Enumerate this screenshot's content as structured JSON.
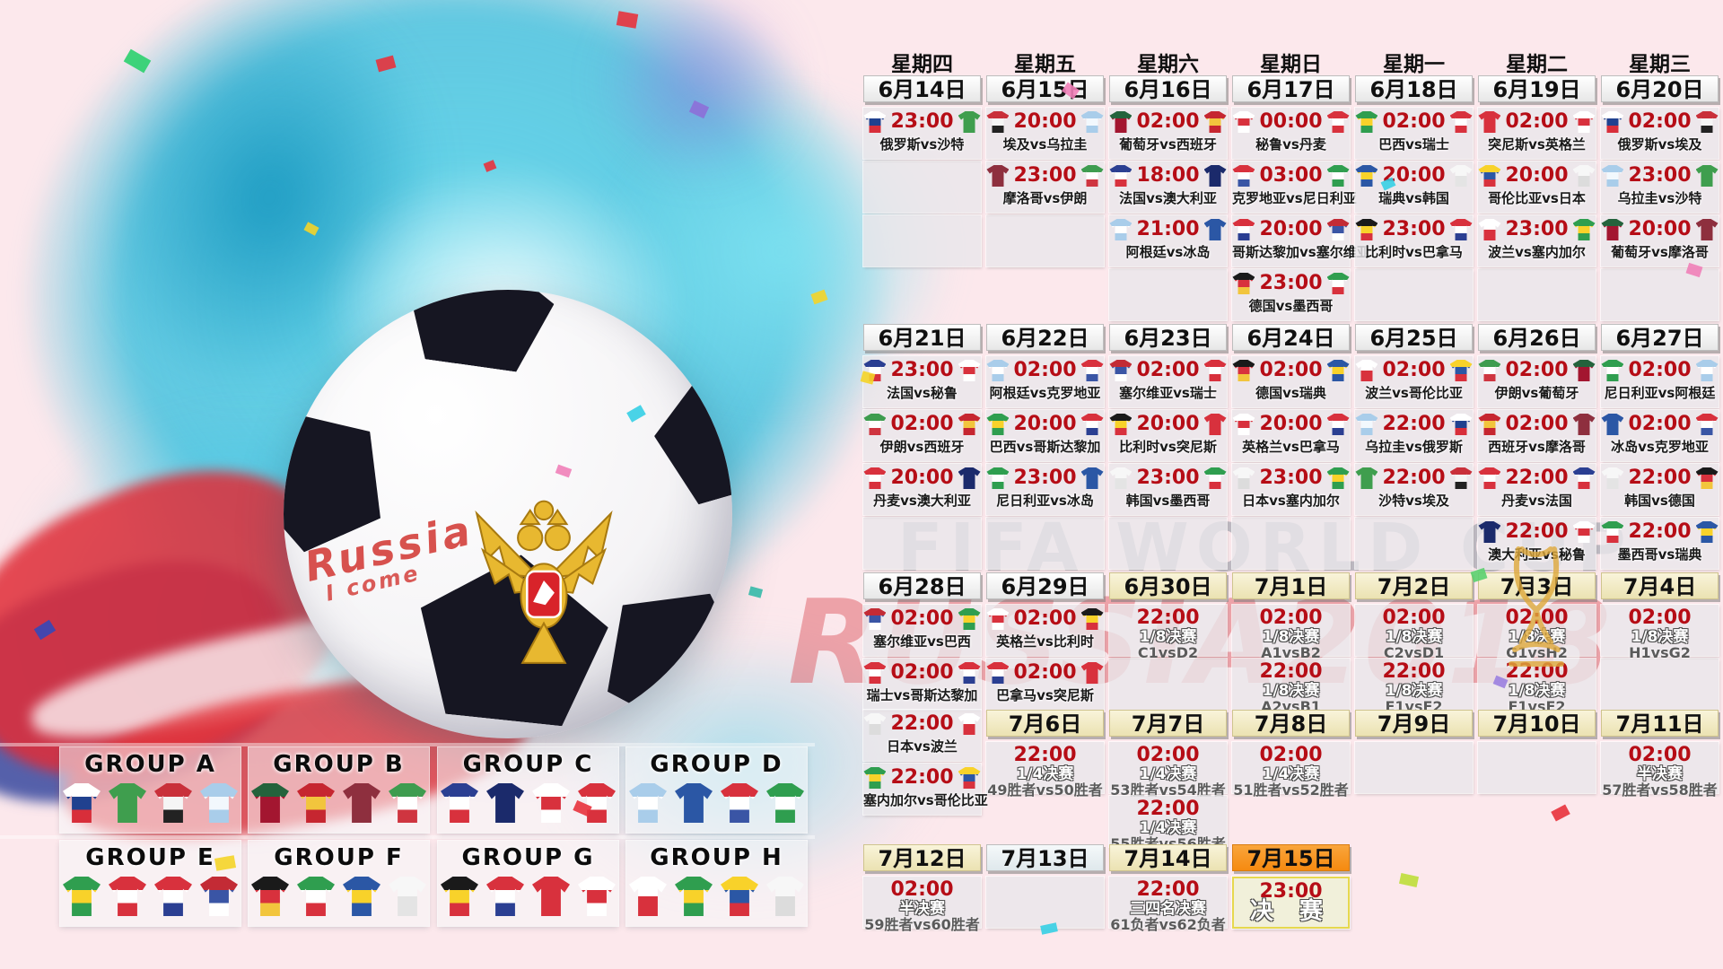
{
  "watermark": {
    "line1": "FIFA WORLD CUP",
    "line2": "RUSSIA2018"
  },
  "ball": {
    "script1": "Russia",
    "script2": "I come",
    "emblem": "russia-coat-of-arms"
  },
  "colors": {
    "time_red": "#b60d16",
    "date_plain": "#ffffff",
    "date_beige": "#f5efcf",
    "date_orange": "#f6921e",
    "final_border": "#e6d84e",
    "watermark_red": "#d63a44",
    "splash_teal": "#3cc0de"
  },
  "teams": {
    "俄罗斯": [
      "#ffffff",
      "#20418f",
      "#d82e3a"
    ],
    "沙特": [
      "#3f9e4e"
    ],
    "埃及": [
      "#c9303a",
      "#f5f5f5",
      "#222222"
    ],
    "乌拉圭": [
      "#a9cdea",
      "#f2f8fd",
      "#a9cdea"
    ],
    "葡萄牙": [
      "#24633c",
      "#a31630",
      "#a31630"
    ],
    "西班牙": [
      "#c62630",
      "#f2c53d",
      "#c62630"
    ],
    "摩洛哥": [
      "#8e2f3e"
    ],
    "伊朗": [
      "#3e9c4f",
      "#ffffff",
      "#cf3540"
    ],
    "法国": [
      "#2b3f92",
      "#ffffff",
      "#d8313d"
    ],
    "澳大利亚": [
      "#1b2a6b"
    ],
    "秘鲁": [
      "#ffffff",
      "#d8313d",
      "#ffffff"
    ],
    "丹麦": [
      "#d8313d",
      "#ffffff",
      "#d8313d"
    ],
    "克罗地亚": [
      "#d8313d",
      "#ffffff",
      "#3a55a5"
    ],
    "尼日利亚": [
      "#2f9e4f",
      "#ffffff",
      "#2f9e4f"
    ],
    "哥斯达黎加": [
      "#d8313d",
      "#ffffff",
      "#2b3f92"
    ],
    "塞尔维亚": [
      "#c32b35",
      "#3a55a5",
      "#ffffff"
    ],
    "德国": [
      "#1a1a1a",
      "#d8313d",
      "#f2c53d"
    ],
    "墨西哥": [
      "#2f9e4f",
      "#ffffff",
      "#d8313d"
    ],
    "巴西": [
      "#2f9e4f",
      "#f8d22a",
      "#2f9e4f"
    ],
    "瑞士": [
      "#d8313d",
      "#ffffff",
      "#d8313d"
    ],
    "瑞典": [
      "#2b57a5",
      "#f8d22a",
      "#2b57a5"
    ],
    "韩国": [
      "#f7f7f7",
      "#e4e4e4"
    ],
    "比利时": [
      "#1a1a1a",
      "#f8d22a",
      "#d8313d"
    ],
    "巴拿马": [
      "#d8313d",
      "#ffffff",
      "#2b3f92"
    ],
    "突尼斯": [
      "#d8313d"
    ],
    "英格兰": [
      "#ffffff",
      "#d8313d",
      "#ffffff"
    ],
    "波兰": [
      "#ffffff",
      "#d8313d"
    ],
    "塞内加尔": [
      "#2f9e4f",
      "#f8d22a",
      "#2f9e4f"
    ],
    "哥伦比亚": [
      "#f8d22a",
      "#2b57a5",
      "#d8313d"
    ],
    "日本": [
      "#f7f7f7",
      "#dcdcdc"
    ],
    "冰岛": [
      "#2b57a5"
    ],
    "阿根廷": [
      "#a9cdea",
      "#ffffff",
      "#a9cdea"
    ]
  },
  "schedule": {
    "weekdays": [
      "星期四",
      "星期五",
      "星期六",
      "星期日",
      "星期一",
      "星期二",
      "星期三"
    ],
    "weeks": [
      {
        "dates": [
          {
            "col": 0,
            "label": "6月14日",
            "variant": "plain"
          },
          {
            "col": 1,
            "label": "6月15日",
            "variant": "plain"
          },
          {
            "col": 2,
            "label": "6月16日",
            "variant": "plain"
          },
          {
            "col": 3,
            "label": "6月17日",
            "variant": "plain"
          },
          {
            "col": 4,
            "label": "6月18日",
            "variant": "plain"
          },
          {
            "col": 5,
            "label": "6月19日",
            "variant": "plain"
          },
          {
            "col": 6,
            "label": "6月20日",
            "variant": "plain"
          }
        ],
        "matches": [
          {
            "col": 0,
            "row": 0,
            "time": "23:00",
            "home": "俄罗斯",
            "away": "沙特",
            "label": "俄罗斯vs沙特"
          },
          {
            "col": 1,
            "row": 0,
            "time": "20:00",
            "home": "埃及",
            "away": "乌拉圭",
            "label": "埃及vs乌拉圭"
          },
          {
            "col": 1,
            "row": 1,
            "time": "23:00",
            "home": "摩洛哥",
            "away": "伊朗",
            "label": "摩洛哥vs伊朗"
          },
          {
            "col": 2,
            "row": 0,
            "time": "02:00",
            "home": "葡萄牙",
            "away": "西班牙",
            "label": "葡萄牙vs西班牙"
          },
          {
            "col": 2,
            "row": 1,
            "time": "18:00",
            "home": "法国",
            "away": "澳大利亚",
            "label": "法国vs澳大利亚"
          },
          {
            "col": 2,
            "row": 2,
            "time": "21:00",
            "home": "阿根廷",
            "away": "冰岛",
            "label": "阿根廷vs冰岛"
          },
          {
            "col": 3,
            "row": 0,
            "time": "00:00",
            "home": "秘鲁",
            "away": "丹麦",
            "label": "秘鲁vs丹麦"
          },
          {
            "col": 3,
            "row": 1,
            "time": "03:00",
            "home": "克罗地亚",
            "away": "尼日利亚",
            "label": "克罗地亚vs尼日利亚"
          },
          {
            "col": 3,
            "row": 2,
            "time": "20:00",
            "home": "哥斯达黎加",
            "away": "塞尔维亚",
            "label": "哥斯达黎加vs塞尔维亚"
          },
          {
            "col": 3,
            "row": 3,
            "time": "23:00",
            "home": "德国",
            "away": "墨西哥",
            "label": "德国vs墨西哥"
          },
          {
            "col": 4,
            "row": 0,
            "time": "02:00",
            "home": "巴西",
            "away": "瑞士",
            "label": "巴西vs瑞士"
          },
          {
            "col": 4,
            "row": 1,
            "time": "20:00",
            "home": "瑞典",
            "away": "韩国",
            "label": "瑞典vs韩国"
          },
          {
            "col": 4,
            "row": 2,
            "time": "23:00",
            "home": "比利时",
            "away": "巴拿马",
            "label": "比利时vs巴拿马"
          },
          {
            "col": 5,
            "row": 0,
            "time": "02:00",
            "home": "突尼斯",
            "away": "英格兰",
            "label": "突尼斯vs英格兰"
          },
          {
            "col": 5,
            "row": 1,
            "time": "20:00",
            "home": "哥伦比亚",
            "away": "日本",
            "label": "哥伦比亚vs日本"
          },
          {
            "col": 5,
            "row": 2,
            "time": "23:00",
            "home": "波兰",
            "away": "塞内加尔",
            "label": "波兰vs塞内加尔"
          },
          {
            "col": 6,
            "row": 0,
            "time": "02:00",
            "home": "俄罗斯",
            "away": "埃及",
            "label": "俄罗斯vs埃及"
          },
          {
            "col": 6,
            "row": 1,
            "time": "23:00",
            "home": "乌拉圭",
            "away": "沙特",
            "label": "乌拉圭vs沙特"
          },
          {
            "col": 6,
            "row": 2,
            "time": "20:00",
            "home": "葡萄牙",
            "away": "摩洛哥",
            "label": "葡萄牙vs摩洛哥"
          }
        ],
        "empty": [
          [
            0,
            1
          ],
          [
            0,
            2
          ],
          [
            1,
            2
          ],
          [
            2,
            3
          ],
          [
            4,
            3
          ],
          [
            5,
            3
          ],
          [
            6,
            3
          ]
        ]
      },
      {
        "dates": [
          {
            "col": 0,
            "label": "6月21日",
            "variant": "plain"
          },
          {
            "col": 1,
            "label": "6月22日",
            "variant": "plain"
          },
          {
            "col": 2,
            "label": "6月23日",
            "variant": "plain"
          },
          {
            "col": 3,
            "label": "6月24日",
            "variant": "plain"
          },
          {
            "col": 4,
            "label": "6月25日",
            "variant": "plain"
          },
          {
            "col": 5,
            "label": "6月26日",
            "variant": "plain"
          },
          {
            "col": 6,
            "label": "6月27日",
            "variant": "plain"
          }
        ],
        "matches": [
          {
            "col": 0,
            "row": 0,
            "time": "23:00",
            "home": "法国",
            "away": "秘鲁",
            "label": "法国vs秘鲁"
          },
          {
            "col": 0,
            "row": 1,
            "time": "02:00",
            "home": "伊朗",
            "away": "西班牙",
            "label": "伊朗vs西班牙"
          },
          {
            "col": 0,
            "row": 2,
            "time": "20:00",
            "home": "丹麦",
            "away": "澳大利亚",
            "label": "丹麦vs澳大利亚"
          },
          {
            "col": 1,
            "row": 0,
            "time": "02:00",
            "home": "阿根廷",
            "away": "克罗地亚",
            "label": "阿根廷vs克罗地亚"
          },
          {
            "col": 1,
            "row": 1,
            "time": "20:00",
            "home": "巴西",
            "away": "哥斯达黎加",
            "label": "巴西vs哥斯达黎加"
          },
          {
            "col": 1,
            "row": 2,
            "time": "23:00",
            "home": "尼日利亚",
            "away": "冰岛",
            "label": "尼日利亚vs冰岛"
          },
          {
            "col": 2,
            "row": 0,
            "time": "02:00",
            "home": "塞尔维亚",
            "away": "瑞士",
            "label": "塞尔维亚vs瑞士"
          },
          {
            "col": 2,
            "row": 1,
            "time": "20:00",
            "home": "比利时",
            "away": "突尼斯",
            "label": "比利时vs突尼斯"
          },
          {
            "col": 2,
            "row": 2,
            "time": "23:00",
            "home": "韩国",
            "away": "墨西哥",
            "label": "韩国vs墨西哥"
          },
          {
            "col": 3,
            "row": 0,
            "time": "02:00",
            "home": "德国",
            "away": "瑞典",
            "label": "德国vs瑞典"
          },
          {
            "col": 3,
            "row": 1,
            "time": "20:00",
            "home": "英格兰",
            "away": "巴拿马",
            "label": "英格兰vs巴拿马"
          },
          {
            "col": 3,
            "row": 2,
            "time": "23:00",
            "home": "日本",
            "away": "塞内加尔",
            "label": "日本vs塞内加尔"
          },
          {
            "col": 4,
            "row": 0,
            "time": "02:00",
            "home": "波兰",
            "away": "哥伦比亚",
            "label": "波兰vs哥伦比亚"
          },
          {
            "col": 4,
            "row": 1,
            "time": "22:00",
            "home": "乌拉圭",
            "away": "俄罗斯",
            "label": "乌拉圭vs俄罗斯"
          },
          {
            "col": 4,
            "row": 2,
            "time": "22:00",
            "home": "沙特",
            "away": "埃及",
            "label": "沙特vs埃及"
          },
          {
            "col": 5,
            "row": 0,
            "time": "02:00",
            "home": "伊朗",
            "away": "葡萄牙",
            "label": "伊朗vs葡萄牙"
          },
          {
            "col": 5,
            "row": 1,
            "time": "02:00",
            "home": "西班牙",
            "away": "摩洛哥",
            "label": "西班牙vs摩洛哥"
          },
          {
            "col": 5,
            "row": 2,
            "time": "22:00",
            "home": "丹麦",
            "away": "法国",
            "label": "丹麦vs法国"
          },
          {
            "col": 5,
            "row": 3,
            "time": "22:00",
            "home": "澳大利亚",
            "away": "秘鲁",
            "label": "澳大利亚vs秘鲁"
          },
          {
            "col": 6,
            "row": 0,
            "time": "02:00",
            "home": "尼日利亚",
            "away": "阿根廷",
            "label": "尼日利亚vs阿根廷"
          },
          {
            "col": 6,
            "row": 1,
            "time": "02:00",
            "home": "冰岛",
            "away": "克罗地亚",
            "label": "冰岛vs克罗地亚"
          },
          {
            "col": 6,
            "row": 2,
            "time": "22:00",
            "home": "韩国",
            "away": "德国",
            "label": "韩国vs德国"
          },
          {
            "col": 6,
            "row": 3,
            "time": "22:00",
            "home": "墨西哥",
            "away": "瑞典",
            "label": "墨西哥vs瑞典"
          }
        ],
        "empty": [
          [
            0,
            3
          ],
          [
            1,
            3
          ],
          [
            2,
            3
          ],
          [
            3,
            3
          ],
          [
            4,
            3
          ]
        ]
      },
      {
        "dates": [
          {
            "col": 0,
            "label": "6月28日",
            "variant": "plain"
          },
          {
            "col": 1,
            "label": "6月29日",
            "variant": "plain"
          },
          {
            "col": 2,
            "label": "6月30日",
            "variant": "beige"
          },
          {
            "col": 3,
            "label": "7月1日",
            "variant": "beige"
          },
          {
            "col": 4,
            "label": "7月2日",
            "variant": "beige"
          },
          {
            "col": 5,
            "label": "7月3日",
            "variant": "beige"
          },
          {
            "col": 6,
            "label": "7月4日",
            "variant": "beige"
          }
        ],
        "matches": [
          {
            "col": 0,
            "row": 0,
            "time": "02:00",
            "home": "塞尔维亚",
            "away": "巴西",
            "label": "塞尔维亚vs巴西"
          },
          {
            "col": 0,
            "row": 1,
            "time": "02:00",
            "home": "瑞士",
            "away": "哥斯达黎加",
            "label": "瑞士vs哥斯达黎加"
          },
          {
            "col": 0,
            "row": 2,
            "time": "22:00",
            "home": "日本",
            "away": "波兰",
            "label": "日本vs波兰"
          },
          {
            "col": 0,
            "row": 3,
            "time": "22:00",
            "home": "塞内加尔",
            "away": "哥伦比亚",
            "label": "塞内加尔vs哥伦比亚"
          },
          {
            "col": 1,
            "row": 0,
            "time": "02:00",
            "home": "英格兰",
            "away": "比利时",
            "label": "英格兰vs比利时"
          },
          {
            "col": 1,
            "row": 1,
            "time": "02:00",
            "home": "巴拿马",
            "away": "突尼斯",
            "label": "巴拿马vs突尼斯"
          },
          {
            "col": 2,
            "row": 0,
            "time": "22:00",
            "stage": "1/8决赛",
            "pair": "C1vsD2"
          },
          {
            "col": 3,
            "row": 0,
            "time": "02:00",
            "stage": "1/8决赛",
            "pair": "A1vsB2"
          },
          {
            "col": 3,
            "row": 1,
            "time": "22:00",
            "stage": "1/8决赛",
            "pair": "A2vsB1"
          },
          {
            "col": 4,
            "row": 0,
            "time": "02:00",
            "stage": "1/8决赛",
            "pair": "C2vsD1"
          },
          {
            "col": 4,
            "row": 1,
            "time": "22:00",
            "stage": "1/8决赛",
            "pair": "E1vsF2"
          },
          {
            "col": 5,
            "row": 0,
            "time": "02:00",
            "stage": "1/8决赛",
            "pair": "G1vsH2"
          },
          {
            "col": 5,
            "row": 1,
            "time": "22:00",
            "stage": "1/8决赛",
            "pair": "F1vsE2"
          },
          {
            "col": 6,
            "row": 0,
            "time": "02:00",
            "stage": "1/8决赛",
            "pair": "H1vsG2"
          }
        ],
        "empty": [
          [
            2,
            1
          ],
          [
            6,
            1
          ]
        ]
      },
      {
        "dates": [
          {
            "col": 1,
            "label": "7月6日",
            "variant": "beige"
          },
          {
            "col": 2,
            "label": "7月7日",
            "variant": "beige"
          },
          {
            "col": 3,
            "label": "7月8日",
            "variant": "beige"
          },
          {
            "col": 4,
            "label": "7月9日",
            "variant": "beige"
          },
          {
            "col": 5,
            "label": "7月10日",
            "variant": "beige"
          },
          {
            "col": 6,
            "label": "7月11日",
            "variant": "beige"
          }
        ],
        "matches": [
          {
            "col": 1,
            "row": 0,
            "time": "22:00",
            "stage": "1/4决赛",
            "pair": "49胜者vs50胜者"
          },
          {
            "col": 2,
            "row": 0,
            "time": "02:00",
            "stage": "1/4决赛",
            "pair": "53胜者vs54胜者"
          },
          {
            "col": 2,
            "row": 1,
            "time": "22:00",
            "stage": "1/4决赛",
            "pair": "55胜者vs56胜者"
          },
          {
            "col": 3,
            "row": 0,
            "time": "02:00",
            "stage": "1/4决赛",
            "pair": "51胜者vs52胜者"
          },
          {
            "col": 6,
            "row": 0,
            "time": "02:00",
            "stage": "半决赛",
            "pair": "57胜者vs58胜者"
          }
        ],
        "empty": [
          [
            4,
            0
          ],
          [
            5,
            0
          ]
        ]
      },
      {
        "dates": [
          {
            "col": 0,
            "label": "7月12日",
            "variant": "beige"
          },
          {
            "col": 1,
            "label": "7月13日",
            "variant": "plain2"
          },
          {
            "col": 2,
            "label": "7月14日",
            "variant": "beige"
          },
          {
            "col": 3,
            "label": "7月15日",
            "variant": "orange"
          }
        ],
        "matches": [
          {
            "col": 0,
            "row": 0,
            "time": "02:00",
            "stage": "半决赛",
            "pair": "59胜者vs60胜者"
          },
          {
            "col": 2,
            "row": 0,
            "time": "22:00",
            "stage": "三四名决赛",
            "pair": "61负者vs62负者"
          },
          {
            "col": 3,
            "row": 0,
            "time": "23:00",
            "stage": "决 赛",
            "pair": "",
            "final": true
          }
        ],
        "empty": [
          [
            1,
            0
          ]
        ]
      }
    ]
  },
  "groups": [
    {
      "name": "GROUP A",
      "teams": [
        "俄罗斯",
        "沙特",
        "埃及",
        "乌拉圭"
      ]
    },
    {
      "name": "GROUP B",
      "teams": [
        "葡萄牙",
        "西班牙",
        "摩洛哥",
        "伊朗"
      ]
    },
    {
      "name": "GROUP C",
      "teams": [
        "法国",
        "澳大利亚",
        "秘鲁",
        "丹麦"
      ]
    },
    {
      "name": "GROUP D",
      "teams": [
        "阿根廷",
        "冰岛",
        "克罗地亚",
        "尼日利亚"
      ]
    },
    {
      "name": "GROUP E",
      "teams": [
        "巴西",
        "瑞士",
        "哥斯达黎加",
        "塞尔维亚"
      ]
    },
    {
      "name": "GROUP F",
      "teams": [
        "德国",
        "墨西哥",
        "瑞典",
        "韩国"
      ]
    },
    {
      "name": "GROUP G",
      "teams": [
        "比利时",
        "巴拿马",
        "突尼斯",
        "英格兰"
      ]
    },
    {
      "name": "GROUP H",
      "teams": [
        "波兰",
        "塞内加尔",
        "哥伦比亚",
        "日本"
      ]
    }
  ]
}
